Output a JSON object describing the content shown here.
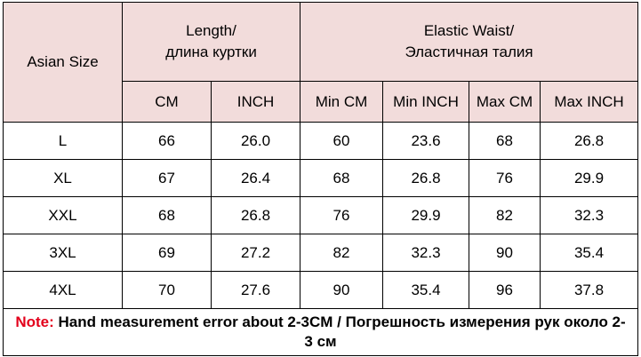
{
  "header": {
    "asian_size": "Asian Size",
    "length": [
      "Length/",
      "длина куртки"
    ],
    "waist": [
      "Elastic Waist/",
      "Эластичная талия"
    ],
    "columns": [
      "CM",
      "INCH",
      "Min CM",
      "Min INCH",
      "Max CM",
      "Max INCH"
    ]
  },
  "table": {
    "rows": [
      [
        "L",
        "66",
        "26.0",
        "60",
        "23.6",
        "68",
        "26.8"
      ],
      [
        "XL",
        "67",
        "26.4",
        "68",
        "26.8",
        "76",
        "29.9"
      ],
      [
        "XXL",
        "68",
        "26.8",
        "76",
        "29.9",
        "82",
        "32.3"
      ],
      [
        "3XL",
        "69",
        "27.2",
        "82",
        "32.3",
        "90",
        "35.4"
      ],
      [
        "4XL",
        "70",
        "27.6",
        "90",
        "35.4",
        "96",
        "37.8"
      ]
    ]
  },
  "note": {
    "label": "Note:",
    "text": "Hand measurement error about 2-3CM / Погрешность измерения рук около 2-3 см"
  }
}
